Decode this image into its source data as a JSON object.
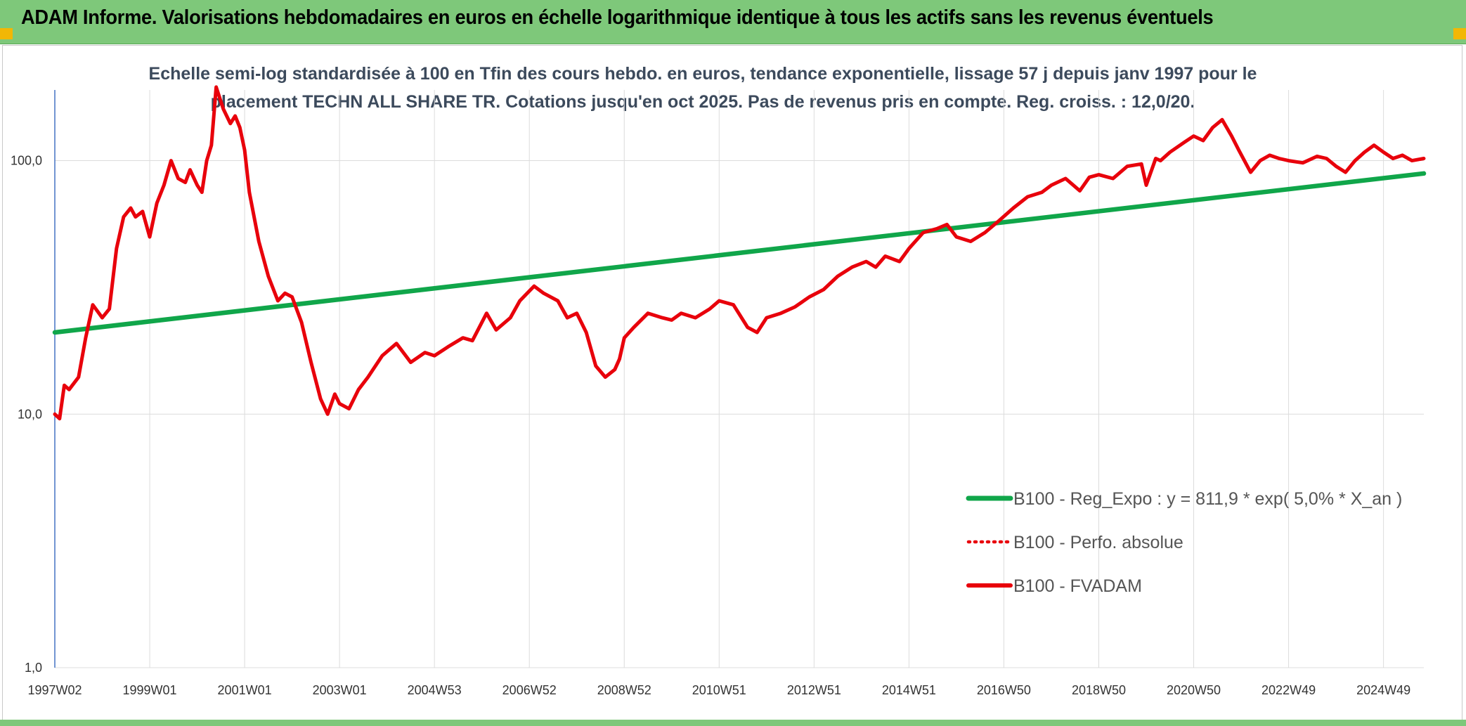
{
  "banner": {
    "title": "ADAM Informe. Valorisations hebdomadaires en euros en échelle logarithmique identique à tous les actifs sans les revenus éventuels"
  },
  "colors": {
    "banner_bg": "#7ec87a",
    "trend_line": "#10a64a",
    "fvadam_line": "#e8000b",
    "accent_corner": "#f2b705"
  },
  "chart_data": {
    "type": "line",
    "title_line1": "Echelle semi-log standardisée à 100 en Tfin des cours hebdo. en euros, tendance exponentielle, lissage 57 j depuis janv 1997 pour le",
    "title_line2": "placement TECHN ALL SHARE TR. Cotations jusqu'en oct 2025. Pas de revenus pris en compte. Reg. croiss. : 12,0/20.",
    "y_scale": "log",
    "ylim": [
      1,
      190
    ],
    "y_ticks": [
      1,
      10,
      100
    ],
    "y_tick_labels": [
      "1,0",
      "10,0",
      "100,0"
    ],
    "x_range": [
      1997.0,
      2025.85
    ],
    "x_ticks": [
      1997.0,
      1999.0,
      2001.0,
      2003.0,
      2005.0,
      2007.0,
      2009.0,
      2011.0,
      2013.0,
      2015.0,
      2017.0,
      2019.0,
      2021.0,
      2023.0,
      2025.0
    ],
    "x_tick_labels": [
      "1997W02",
      "1999W01",
      "2001W01",
      "2003W01",
      "2004W53",
      "2006W52",
      "2008W52",
      "2010W51",
      "2012W51",
      "2014W51",
      "2016W50",
      "2018W50",
      "2020W50",
      "2022W49",
      "2024W49"
    ],
    "grid": "vertical lines at x ticks, horizontal lines at y ticks",
    "legend_position": "lower-right",
    "series": [
      {
        "name": "B100 - Reg_Expo : y = 811,9 * exp( 5,0% *  X_an )",
        "style": "solid-thick",
        "color": "#10a64a",
        "x": [
          1997.0,
          2025.85
        ],
        "y": [
          21.0,
          89.0
        ]
      },
      {
        "name": "B100 - Perfo. absolue",
        "style": "dotted",
        "color": "#e8000b",
        "x": [],
        "y": []
      },
      {
        "name": "B100 - FVADAM",
        "style": "solid",
        "color": "#e8000b",
        "x": [
          1997.0,
          1997.1,
          1997.2,
          1997.3,
          1997.5,
          1997.65,
          1997.8,
          1998.0,
          1998.15,
          1998.3,
          1998.45,
          1998.6,
          1998.7,
          1998.85,
          1999.0,
          1999.15,
          1999.3,
          1999.45,
          1999.6,
          1999.75,
          1999.85,
          2000.0,
          2000.1,
          2000.2,
          2000.3,
          2000.4,
          2000.55,
          2000.7,
          2000.8,
          2000.9,
          2001.0,
          2001.1,
          2001.3,
          2001.5,
          2001.7,
          2001.85,
          2002.0,
          2002.2,
          2002.4,
          2002.6,
          2002.75,
          2002.9,
          2003.0,
          2003.2,
          2003.4,
          2003.6,
          2003.9,
          2004.2,
          2004.5,
          2004.8,
          2005.0,
          2005.3,
          2005.6,
          2005.8,
          2006.1,
          2006.3,
          2006.6,
          2006.8,
          2007.1,
          2007.3,
          2007.6,
          2007.8,
          2008.0,
          2008.2,
          2008.4,
          2008.6,
          2008.8,
          2008.9,
          2009.0,
          2009.2,
          2009.5,
          2009.8,
          2010.0,
          2010.2,
          2010.5,
          2010.8,
          2011.0,
          2011.3,
          2011.6,
          2011.8,
          2012.0,
          2012.3,
          2012.6,
          2012.9,
          2013.2,
          2013.5,
          2013.8,
          2014.1,
          2014.3,
          2014.5,
          2014.8,
          2015.0,
          2015.3,
          2015.6,
          2015.8,
          2016.0,
          2016.3,
          2016.6,
          2016.9,
          2017.2,
          2017.5,
          2017.8,
          2018.0,
          2018.3,
          2018.6,
          2018.8,
          2019.0,
          2019.3,
          2019.6,
          2019.9,
          2020.0,
          2020.2,
          2020.3,
          2020.5,
          2020.8,
          2021.0,
          2021.2,
          2021.4,
          2021.6,
          2021.8,
          2021.95,
          2022.2,
          2022.4,
          2022.6,
          2022.8,
          2023.0,
          2023.3,
          2023.6,
          2023.8,
          2024.0,
          2024.2,
          2024.4,
          2024.6,
          2024.8,
          2025.0,
          2025.2,
          2025.4,
          2025.6,
          2025.85
        ],
        "y": [
          10.0,
          9.6,
          13.0,
          12.5,
          14.0,
          20.0,
          27.0,
          24.0,
          26.0,
          45.0,
          60.0,
          65.0,
          60.0,
          63.0,
          50.0,
          68.0,
          80.0,
          100.0,
          85.0,
          82.0,
          92.0,
          80.0,
          75.0,
          100.0,
          115.0,
          195.0,
          160.0,
          140.0,
          150.0,
          135.0,
          110.0,
          75.0,
          48.0,
          35.0,
          28.0,
          30.0,
          29.0,
          23.0,
          16.0,
          11.5,
          10.0,
          12.0,
          11.0,
          10.5,
          12.5,
          14.0,
          17.0,
          19.0,
          16.0,
          17.5,
          17.0,
          18.5,
          20.0,
          19.5,
          25.0,
          21.5,
          24.0,
          28.0,
          32.0,
          30.0,
          28.0,
          24.0,
          25.0,
          21.0,
          15.5,
          14.0,
          15.0,
          16.5,
          20.0,
          22.0,
          25.0,
          24.0,
          23.5,
          25.0,
          24.0,
          26.0,
          28.0,
          27.0,
          22.0,
          21.0,
          24.0,
          25.0,
          26.5,
          29.0,
          31.0,
          35.0,
          38.0,
          40.0,
          38.0,
          42.0,
          40.0,
          45.0,
          52.0,
          54.0,
          56.0,
          50.0,
          48.0,
          52.0,
          58.0,
          65.0,
          72.0,
          75.0,
          80.0,
          85.0,
          76.0,
          86.0,
          88.0,
          85.0,
          95.0,
          97.0,
          80.0,
          102.0,
          100.0,
          108.0,
          118.0,
          125.0,
          120.0,
          135.0,
          145.0,
          125.0,
          110.0,
          90.0,
          100.0,
          105.0,
          102.0,
          100.0,
          98.0,
          104.0,
          102.0,
          95.0,
          90.0,
          100.0,
          108.0,
          115.0,
          108.0,
          102.0,
          105.0,
          100.0,
          102.0
        ]
      }
    ]
  }
}
